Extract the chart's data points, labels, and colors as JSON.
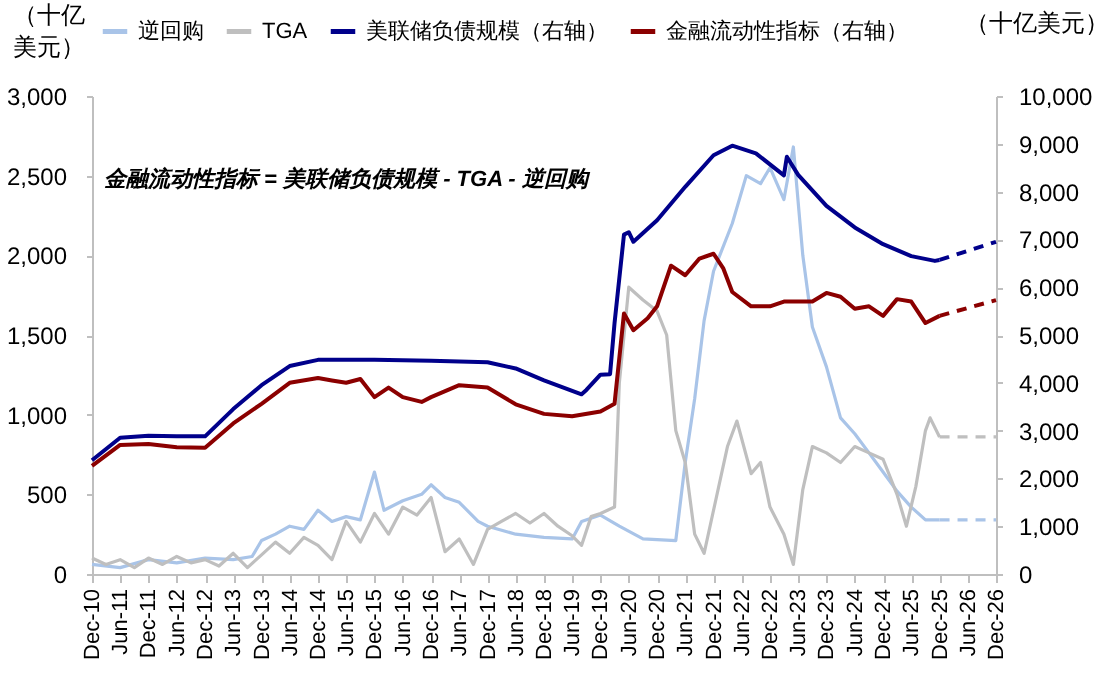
{
  "chart_data": {
    "type": "line",
    "ylabel": "（十亿美元）",
    "y2label": "（十亿美元）",
    "annotations": [
      "金融流动性指标 = 美联储负债规模 - TGA - 逆回购"
    ],
    "legend": "top",
    "grid": false,
    "marker": "none",
    "xlim": [
      "2010-12",
      "2026-12"
    ],
    "xticks": [
      {
        "value": "2010-12",
        "label": "Dec-10"
      },
      {
        "value": "2011-06",
        "label": "Jun-11"
      },
      {
        "value": "2011-12",
        "label": "Dec-11"
      },
      {
        "value": "2012-06",
        "label": "Jun-12"
      },
      {
        "value": "2012-12",
        "label": "Dec-12"
      },
      {
        "value": "2013-06",
        "label": "Jun-13"
      },
      {
        "value": "2013-12",
        "label": "Dec-13"
      },
      {
        "value": "2014-06",
        "label": "Jun-14"
      },
      {
        "value": "2014-12",
        "label": "Dec-14"
      },
      {
        "value": "2015-06",
        "label": "Jun-15"
      },
      {
        "value": "2015-12",
        "label": "Dec-15"
      },
      {
        "value": "2016-06",
        "label": "Jun-16"
      },
      {
        "value": "2016-12",
        "label": "Dec-16"
      },
      {
        "value": "2017-06",
        "label": "Jun-17"
      },
      {
        "value": "2017-12",
        "label": "Dec-17"
      },
      {
        "value": "2018-06",
        "label": "Jun-18"
      },
      {
        "value": "2018-12",
        "label": "Dec-18"
      },
      {
        "value": "2019-06",
        "label": "Jun-19"
      },
      {
        "value": "2019-12",
        "label": "Dec-19"
      },
      {
        "value": "2020-06",
        "label": "Jun-20"
      },
      {
        "value": "2020-12",
        "label": "Dec-20"
      },
      {
        "value": "2021-06",
        "label": "Jun-21"
      },
      {
        "value": "2021-12",
        "label": "Dec-21"
      },
      {
        "value": "2022-06",
        "label": "Jun-22"
      },
      {
        "value": "2022-12",
        "label": "Dec-22"
      },
      {
        "value": "2023-06",
        "label": "Jun-23"
      },
      {
        "value": "2023-12",
        "label": "Dec-23"
      },
      {
        "value": "2024-06",
        "label": "Jun-24"
      },
      {
        "value": "2024-12",
        "label": "Dec-24"
      },
      {
        "value": "2025-06",
        "label": "Jun-25"
      },
      {
        "value": "2025-12",
        "label": "Dec-25"
      },
      {
        "value": "2026-06",
        "label": "Jun-26"
      },
      {
        "value": "2026-12",
        "label": "Dec-26"
      }
    ],
    "ylim": [
      0,
      3000
    ],
    "yticks": [
      0,
      500,
      {
        "value": 1000,
        "label": "1,000"
      },
      {
        "value": 1500,
        "label": "1,500"
      },
      {
        "value": 2000,
        "label": "2,000"
      },
      {
        "value": 2500,
        "label": "2,500"
      },
      {
        "value": 3000,
        "label": "3,000"
      }
    ],
    "y2lim": [
      0,
      10000
    ],
    "y2ticks": [
      0,
      {
        "value": 1000,
        "label": "1,000"
      },
      {
        "value": 2000,
        "label": "2,000"
      },
      {
        "value": 3000,
        "label": "3,000"
      },
      {
        "value": 4000,
        "label": "4,000"
      },
      {
        "value": 5000,
        "label": "5,000"
      },
      {
        "value": 6000,
        "label": "6,000"
      },
      {
        "value": 7000,
        "label": "7,000"
      },
      {
        "value": 8000,
        "label": "8,000"
      },
      {
        "value": 9000,
        "label": "9,000"
      },
      {
        "value": 10000,
        "label": "10,000"
      }
    ],
    "series": [
      {
        "name": "逆回购",
        "color": "#a9c4e8",
        "line_style": "solid",
        "x": [
          "2010-12",
          "2011-06",
          "2011-12",
          "2012-06",
          "2012-12",
          "2013-06",
          "2013-10",
          "2013-12",
          "2014-03",
          "2014-06",
          "2014-09",
          "2014-12",
          "2015-03",
          "2015-06",
          "2015-09",
          "2015-12",
          "2016-02",
          "2016-06",
          "2016-10",
          "2016-12",
          "2017-03",
          "2017-06",
          "2017-10",
          "2017-12",
          "2018-06",
          "2018-12",
          "2019-06",
          "2019-08",
          "2019-12",
          "2020-04",
          "2020-09",
          "2021-04",
          "2021-06",
          "2021-08",
          "2021-10",
          "2021-12",
          "2022-04",
          "2022-07",
          "2022-10",
          "2022-12",
          "2023-03",
          "2023-05",
          "2023-07",
          "2023-09",
          "2023-12",
          "2024-03",
          "2024-06",
          "2024-09",
          "2024-12",
          "2025-03",
          "2025-06",
          "2025-09",
          "2025-12"
        ],
        "values": [
          60,
          40,
          90,
          70,
          100,
          90,
          110,
          210,
          250,
          300,
          280,
          400,
          330,
          360,
          340,
          640,
          400,
          460,
          500,
          560,
          480,
          450,
          330,
          300,
          250,
          230,
          220,
          330,
          370,
          300,
          220,
          210,
          700,
          1100,
          1590,
          1900,
          2200,
          2500,
          2450,
          2550,
          2350,
          2680,
          2000,
          1550,
          1300,
          980,
          880,
          760,
          640,
          520,
          420,
          340,
          340
        ]
      },
      {
        "name": "TGA",
        "color": "#bfbfbf",
        "line_style": "solid",
        "x": [
          "2010-12",
          "2011-03",
          "2011-06",
          "2011-09",
          "2011-12",
          "2012-03",
          "2012-06",
          "2012-09",
          "2012-12",
          "2013-03",
          "2013-06",
          "2013-09",
          "2013-12",
          "2014-03",
          "2014-06",
          "2014-09",
          "2014-12",
          "2015-03",
          "2015-06",
          "2015-09",
          "2015-12",
          "2016-03",
          "2016-06",
          "2016-09",
          "2016-12",
          "2017-03",
          "2017-06",
          "2017-09",
          "2017-12",
          "2018-03",
          "2018-06",
          "2018-09",
          "2018-12",
          "2019-03",
          "2019-06",
          "2019-08",
          "2019-10",
          "2019-12",
          "2020-03",
          "2020-04",
          "2020-06",
          "2020-09",
          "2020-12",
          "2021-02",
          "2021-04",
          "2021-06",
          "2021-08",
          "2021-10",
          "2021-12",
          "2022-03",
          "2022-05",
          "2022-08",
          "2022-10",
          "2022-12",
          "2023-03",
          "2023-05",
          "2023-07",
          "2023-09",
          "2023-12",
          "2024-03",
          "2024-06",
          "2024-09",
          "2024-12",
          "2025-03",
          "2025-05",
          "2025-07",
          "2025-09",
          "2025-10",
          "2025-12"
        ],
        "values": [
          100,
          60,
          90,
          40,
          100,
          60,
          110,
          70,
          90,
          50,
          130,
          40,
          120,
          200,
          130,
          230,
          180,
          90,
          330,
          200,
          380,
          250,
          420,
          370,
          480,
          140,
          220,
          60,
          280,
          330,
          380,
          320,
          380,
          300,
          240,
          180,
          360,
          380,
          420,
          1200,
          1800,
          1720,
          1650,
          1500,
          900,
          700,
          250,
          130,
          400,
          800,
          960,
          630,
          700,
          420,
          250,
          60,
          530,
          800,
          760,
          700,
          800,
          760,
          720,
          500,
          300,
          550,
          900,
          980,
          860
        ]
      },
      {
        "name": "美联储负债规模（右轴）",
        "color": "#00008b",
        "axis": "y2",
        "line_style": "solid",
        "x": [
          "2010-12",
          "2011-06",
          "2011-12",
          "2012-06",
          "2012-12",
          "2013-06",
          "2013-12",
          "2014-06",
          "2014-12",
          "2015-12",
          "2016-12",
          "2017-12",
          "2018-06",
          "2018-12",
          "2019-08",
          "2019-09",
          "2019-12",
          "2020-02",
          "2020-03",
          "2020-05",
          "2020-06",
          "2020-07",
          "2020-12",
          "2021-06",
          "2021-12",
          "2022-04",
          "2022-09",
          "2023-03-01",
          "2023-03-20",
          "2023-06",
          "2023-12",
          "2024-06",
          "2024-12",
          "2025-06",
          "2025-11",
          "2025-12"
        ],
        "values": [
          2380,
          2850,
          2890,
          2880,
          2880,
          3450,
          3950,
          4350,
          4480,
          4480,
          4460,
          4430,
          4300,
          4050,
          3760,
          3850,
          4170,
          4180,
          5250,
          7100,
          7150,
          6950,
          7400,
          8100,
          8760,
          8960,
          8800,
          8340,
          8730,
          8350,
          7700,
          7250,
          6900,
          6650,
          6550,
          6570
        ]
      },
      {
        "name": "金融流动性指标（右轴）",
        "color": "#8b0000",
        "axis": "y2",
        "line_style": "solid",
        "x": [
          "2010-12",
          "2011-06",
          "2011-12",
          "2012-06",
          "2012-12",
          "2013-06",
          "2013-12",
          "2014-06",
          "2014-12",
          "2015-03",
          "2015-06",
          "2015-09",
          "2015-12",
          "2016-03",
          "2016-06",
          "2016-10",
          "2016-12",
          "2017-06",
          "2017-12",
          "2018-06",
          "2018-12",
          "2019-06",
          "2019-12",
          "2020-03",
          "2020-05",
          "2020-07",
          "2020-10",
          "2020-12",
          "2021-03",
          "2021-06",
          "2021-09",
          "2021-12",
          "2022-02",
          "2022-04",
          "2022-08",
          "2022-12",
          "2023-03",
          "2023-09",
          "2023-12",
          "2024-03",
          "2024-06",
          "2024-09",
          "2024-12",
          "2025-03",
          "2025-06",
          "2025-09",
          "2025-12"
        ],
        "values": [
          2260,
          2700,
          2720,
          2650,
          2640,
          3150,
          3560,
          4000,
          4100,
          4050,
          4000,
          4080,
          3700,
          3900,
          3700,
          3600,
          3700,
          3950,
          3900,
          3550,
          3350,
          3300,
          3400,
          3560,
          5450,
          5100,
          5350,
          5600,
          6450,
          6250,
          6600,
          6700,
          6400,
          5900,
          5600,
          5600,
          5700,
          5700,
          5880,
          5800,
          5550,
          5600,
          5400,
          5750,
          5700,
          5250,
          5400
        ]
      },
      {
        "color": "#a9c4e8",
        "line_style": "dashed",
        "x": [
          "2025-12",
          "2026-12"
        ],
        "values": [
          340,
          340
        ]
      },
      {
        "color": "#bfbfbf",
        "line_style": "dashed",
        "x": [
          "2025-12",
          "2026-12"
        ],
        "values": [
          860,
          860
        ]
      },
      {
        "color": "#00008b",
        "axis": "y2",
        "line_style": "dashed",
        "x": [
          "2025-12",
          "2026-12"
        ],
        "values": [
          6570,
          6950
        ]
      },
      {
        "color": "#8b0000",
        "axis": "y2",
        "line_style": "dashed",
        "x": [
          "2025-12",
          "2026-12"
        ],
        "values": [
          5400,
          5730
        ]
      }
    ]
  }
}
